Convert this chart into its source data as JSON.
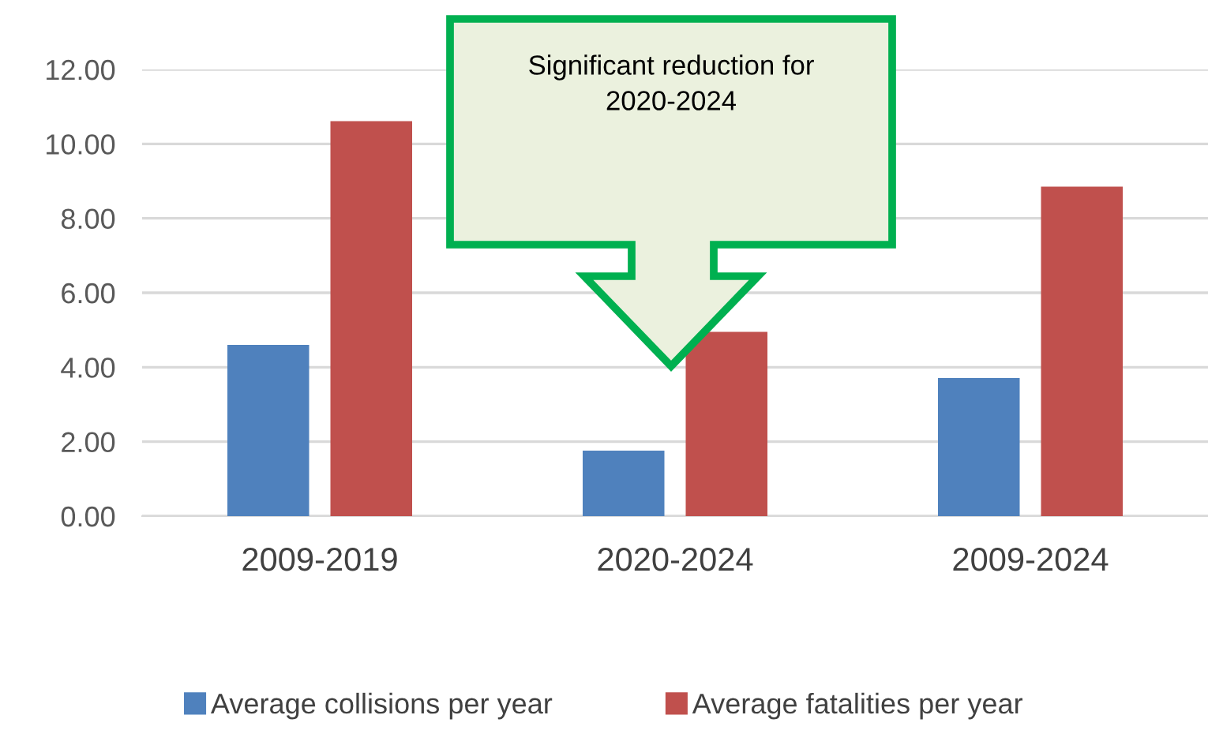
{
  "chart_data": {
    "type": "bar",
    "categories": [
      "2009-2019",
      "2020-2024",
      "2009-2024"
    ],
    "series": [
      {
        "name": "Average collisions per year",
        "color": "#4f81bd",
        "values": [
          4.6,
          1.76,
          3.71
        ]
      },
      {
        "name": "Average fatalities per year",
        "color": "#c0504d",
        "values": [
          10.61,
          4.95,
          8.85
        ]
      }
    ],
    "ylim": [
      0,
      12
    ],
    "yticks": [
      {
        "value": 0,
        "label": "0.00"
      },
      {
        "value": 2,
        "label": "2.00"
      },
      {
        "value": 4,
        "label": "4.00"
      },
      {
        "value": 6,
        "label": "6.00"
      },
      {
        "value": 8,
        "label": "8.00"
      },
      {
        "value": 10,
        "label": "10.00"
      },
      {
        "value": 12,
        "label": "12.00"
      }
    ],
    "grid": "y",
    "legend": "bottom",
    "annotations": [
      "Significant reduction for 2020-2024"
    ]
  }
}
